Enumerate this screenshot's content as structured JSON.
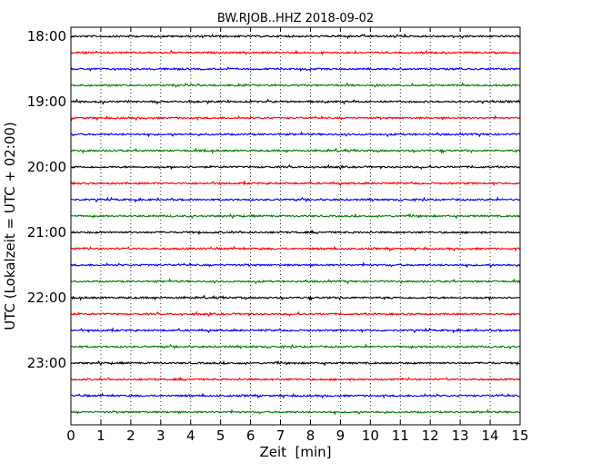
{
  "chart_data": {
    "type": "line",
    "title": "BW.RJOB..HHZ 2018-09-02",
    "xlabel": "Zeit  [min]",
    "ylabel": "UTC (Lokalzeit = UTC + 02:00)",
    "xlim": [
      0,
      15
    ],
    "x_ticks": [
      "0",
      "1",
      "2",
      "3",
      "4",
      "5",
      "6",
      "7",
      "8",
      "9",
      "10",
      "11",
      "12",
      "13",
      "14",
      "15"
    ],
    "y_ticks": [
      "18:00",
      "19:00",
      "20:00",
      "21:00",
      "22:00",
      "23:00"
    ],
    "grid": "vertical dotted",
    "series": [
      {
        "start": "18:00",
        "color": "#000000"
      },
      {
        "start": "18:15",
        "color": "#ff0000"
      },
      {
        "start": "18:30",
        "color": "#0000ff"
      },
      {
        "start": "18:45",
        "color": "#008000"
      },
      {
        "start": "19:00",
        "color": "#000000"
      },
      {
        "start": "19:15",
        "color": "#ff0000"
      },
      {
        "start": "19:30",
        "color": "#0000ff"
      },
      {
        "start": "19:45",
        "color": "#008000"
      },
      {
        "start": "20:00",
        "color": "#000000"
      },
      {
        "start": "20:15",
        "color": "#ff0000"
      },
      {
        "start": "20:30",
        "color": "#0000ff"
      },
      {
        "start": "20:45",
        "color": "#008000"
      },
      {
        "start": "21:00",
        "color": "#000000"
      },
      {
        "start": "21:15",
        "color": "#ff0000"
      },
      {
        "start": "21:30",
        "color": "#0000ff"
      },
      {
        "start": "21:45",
        "color": "#008000"
      },
      {
        "start": "22:00",
        "color": "#000000"
      },
      {
        "start": "22:15",
        "color": "#ff0000"
      },
      {
        "start": "22:30",
        "color": "#0000ff"
      },
      {
        "start": "22:45",
        "color": "#008000"
      },
      {
        "start": "23:00",
        "color": "#000000"
      },
      {
        "start": "23:15",
        "color": "#ff0000"
      },
      {
        "start": "23:30",
        "color": "#0000ff"
      },
      {
        "start": "23:45",
        "color": "#008000"
      }
    ]
  }
}
